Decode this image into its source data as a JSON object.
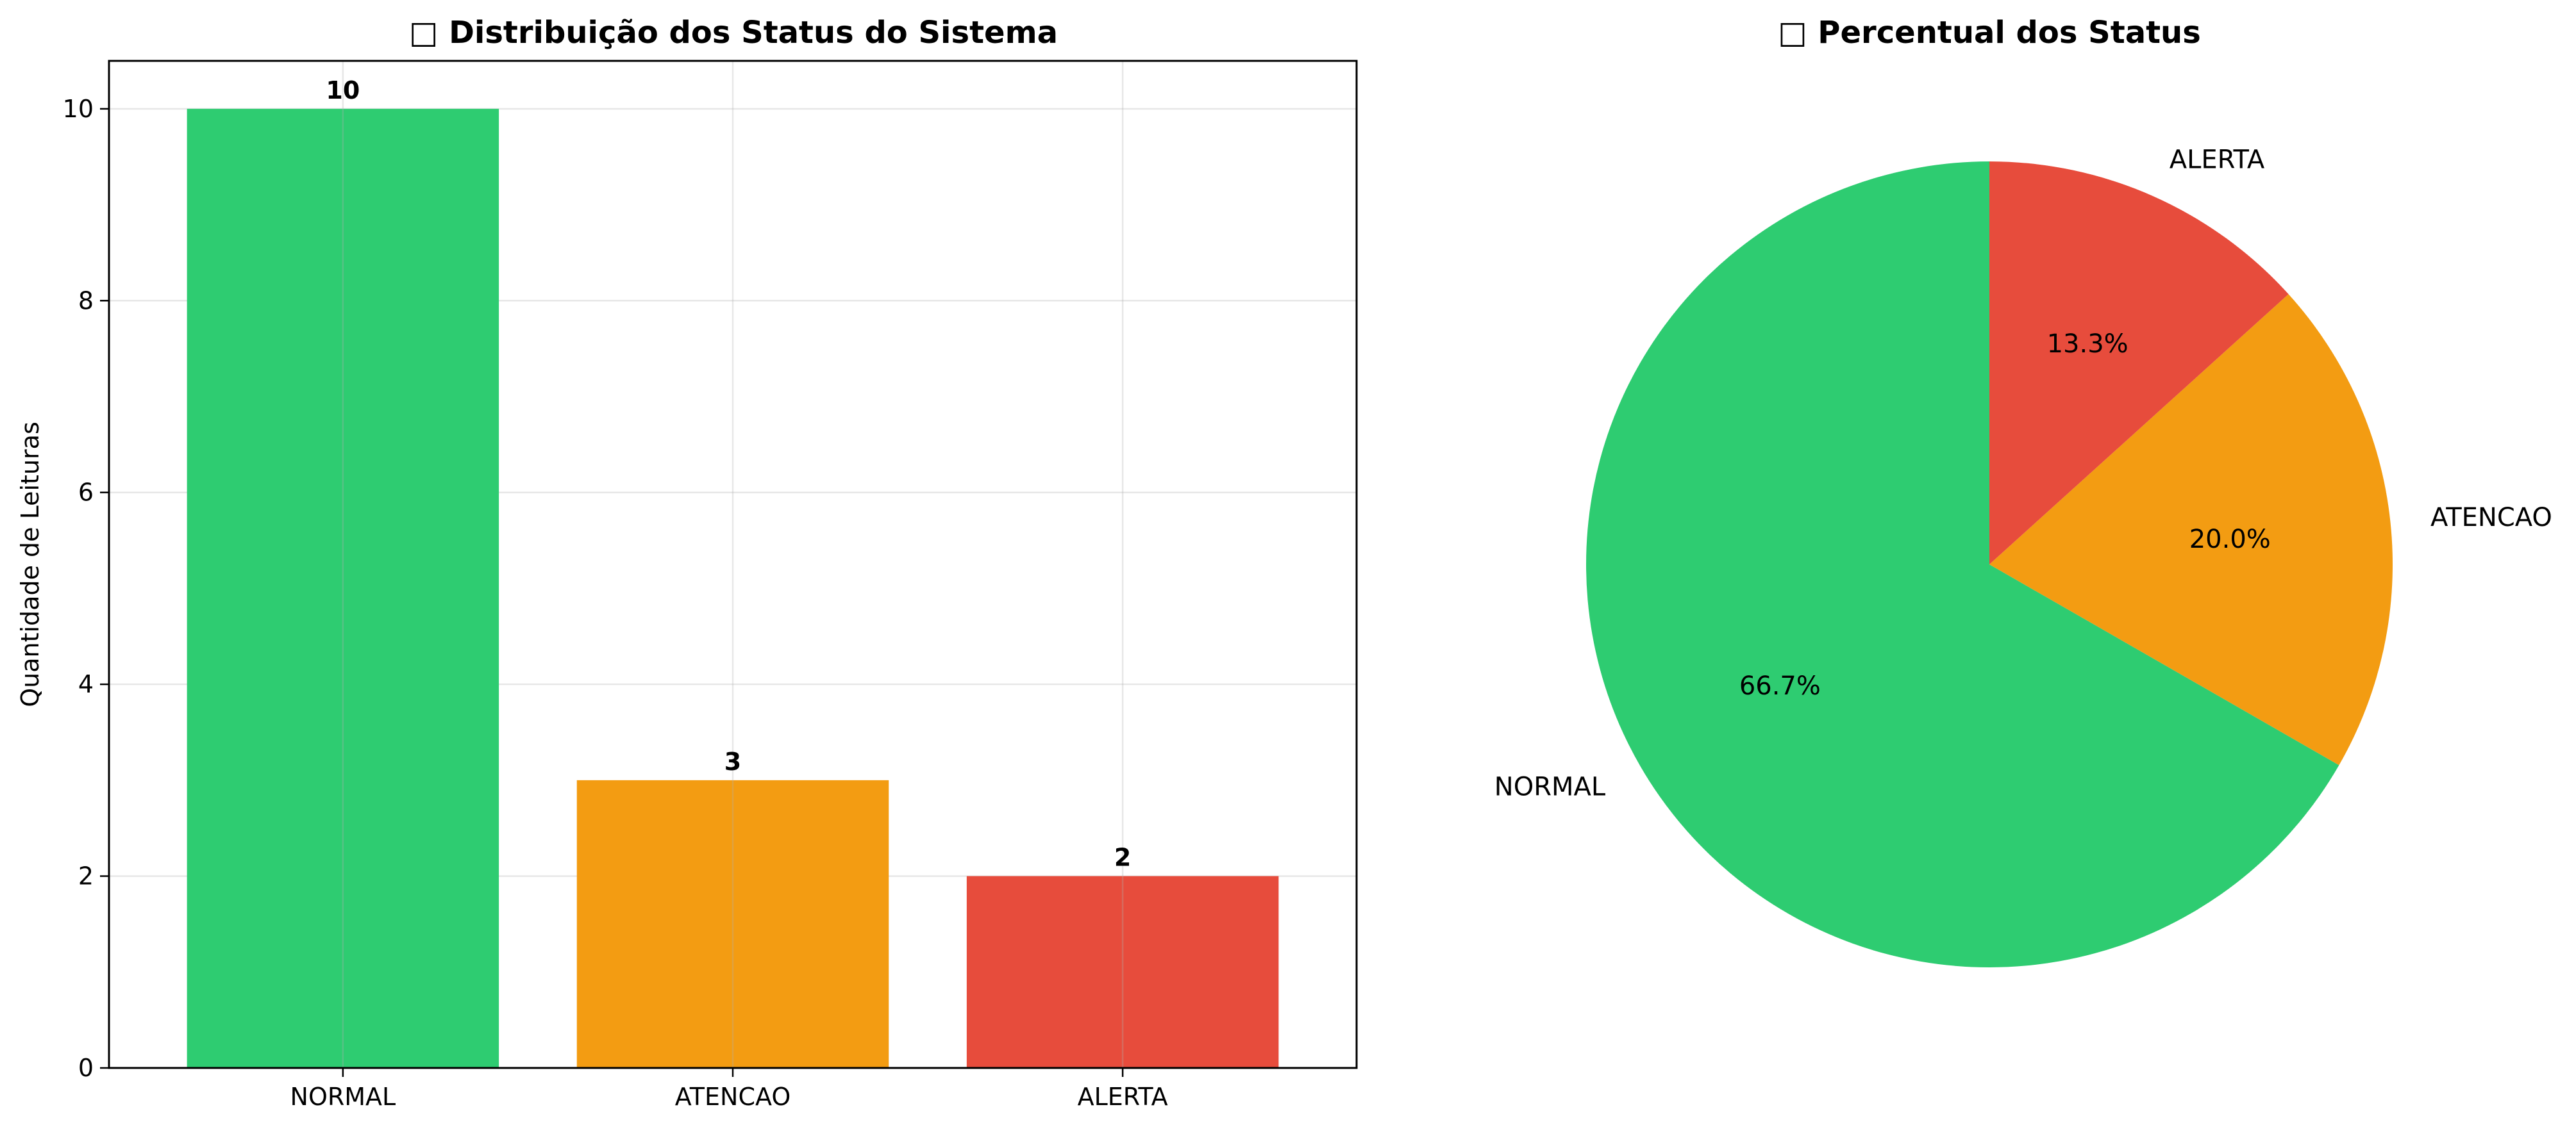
{
  "chart_data": [
    {
      "type": "bar",
      "title": "□ Distribuição dos Status do Sistema",
      "xlabel": "",
      "ylabel": "Quantidade de Leituras",
      "categories": [
        "NORMAL",
        "ATENCAO",
        "ALERTA"
      ],
      "values": [
        10,
        3,
        2
      ],
      "data_labels": [
        "10",
        "3",
        "2"
      ],
      "colors": [
        "#2ecc71",
        "#f39c12",
        "#e74c3c"
      ],
      "ylim": [
        0,
        10.5
      ],
      "yticks": [
        0,
        2,
        4,
        6,
        8,
        10
      ],
      "ytick_labels": [
        "0",
        "2",
        "4",
        "6",
        "8",
        "10"
      ],
      "grid": true
    },
    {
      "type": "pie",
      "title": "□ Percentual dos Status",
      "labels": [
        "NORMAL",
        "ATENCAO",
        "ALERTA"
      ],
      "values": [
        66.7,
        20.0,
        13.3
      ],
      "pct_labels": [
        "66.7%",
        "20.0%",
        "13.3%"
      ],
      "colors": [
        "#2ecc71",
        "#f39c12",
        "#e74c3c"
      ],
      "start_angle_deg": 90,
      "direction": "counterclockwise"
    }
  ]
}
